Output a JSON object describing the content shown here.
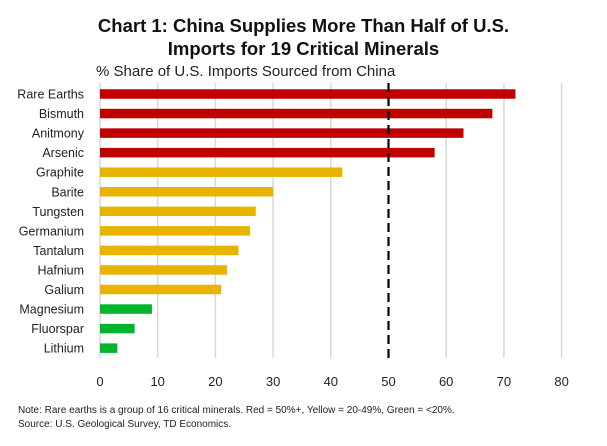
{
  "chart_data": {
    "type": "bar",
    "orientation": "horizontal",
    "title": "Chart 1: China Supplies More Than Half of U.S. Imports for 19 Critical Minerals",
    "title_lines": [
      "Chart 1: China Supplies More Than Half of U.S.",
      "Imports for 19 Critical Minerals"
    ],
    "subtitle": "% Share of U.S. Imports Sourced from China",
    "xlabel": "",
    "ylabel": "",
    "xlim": [
      0,
      80
    ],
    "xticks": [
      0,
      10,
      20,
      30,
      40,
      50,
      60,
      70,
      80
    ],
    "grid": true,
    "reference_line": {
      "value": 50,
      "style": "dashed",
      "color": "#000000"
    },
    "categories": [
      "Rare Earths",
      "Bismuth",
      "Anitmony",
      "Arsenic",
      "Graphite",
      "Barite",
      "Tungsten",
      "Germanium",
      "Tantalum",
      "Hafnium",
      "Galium",
      "Magnesium",
      "Fluorspar",
      "Lithium"
    ],
    "values": [
      72,
      68,
      63,
      58,
      42,
      30,
      27,
      26,
      24,
      22,
      21,
      9,
      6,
      3
    ],
    "color_groups": [
      "red",
      "red",
      "red",
      "red",
      "yellow",
      "yellow",
      "yellow",
      "yellow",
      "yellow",
      "yellow",
      "yellow",
      "green",
      "green",
      "green"
    ],
    "colors": {
      "red": "#C00000",
      "yellow": "#E8B400",
      "green": "#00B52D",
      "grid": "#D9D9D9"
    },
    "legend": null
  },
  "footer": {
    "note": "Note: Rare earths is a group of 16 critical minerals. Red = 50%+, Yellow = 20-49%, Green = <20%.",
    "source": "Source: U.S. Geological Survey, TD Economics."
  }
}
